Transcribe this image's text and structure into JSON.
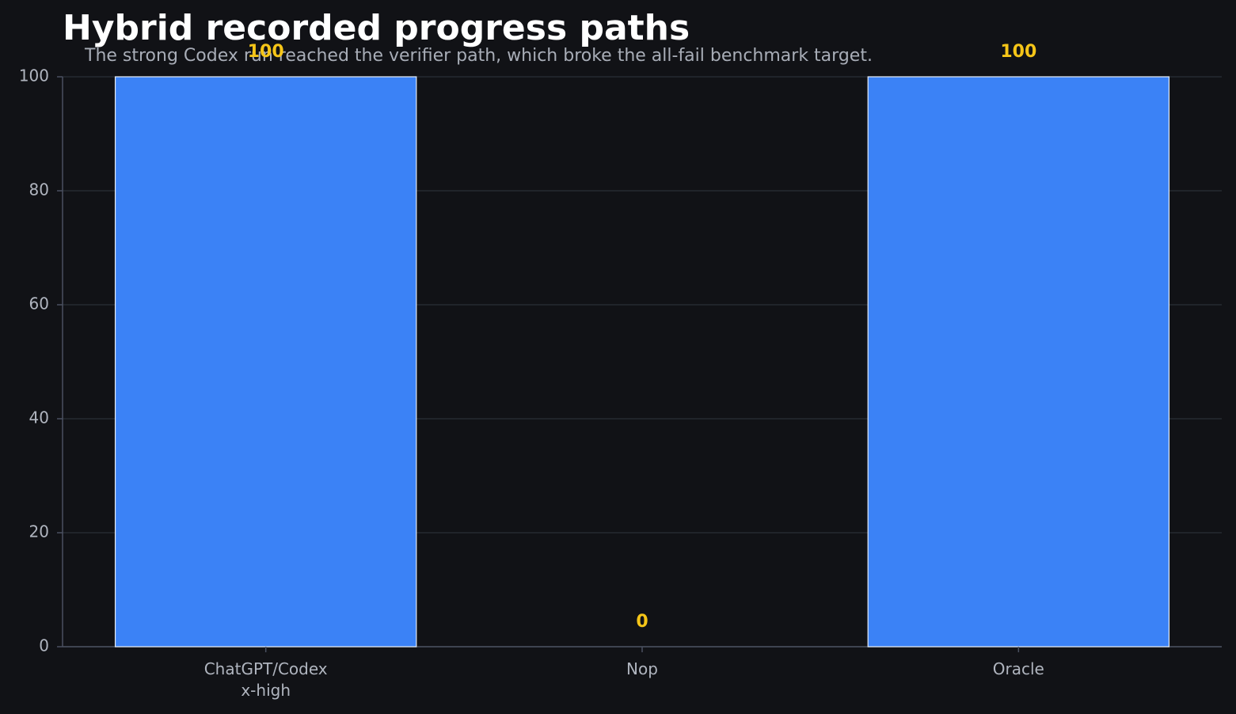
{
  "chart_data": {
    "type": "bar",
    "title": "Hybrid recorded progress paths",
    "subtitle": "The strong Codex run reached the verifier path, which broke the all-fail benchmark target.",
    "categories": [
      "ChatGPT/Codex\nx-high",
      "Nop",
      "Oracle"
    ],
    "values": [
      100,
      0,
      100
    ],
    "color": "#3b82f6",
    "label_color": "#f5c518",
    "ylim": [
      0,
      100
    ],
    "yticks": [
      0,
      20,
      40,
      60,
      80,
      100
    ],
    "grid": true
  }
}
